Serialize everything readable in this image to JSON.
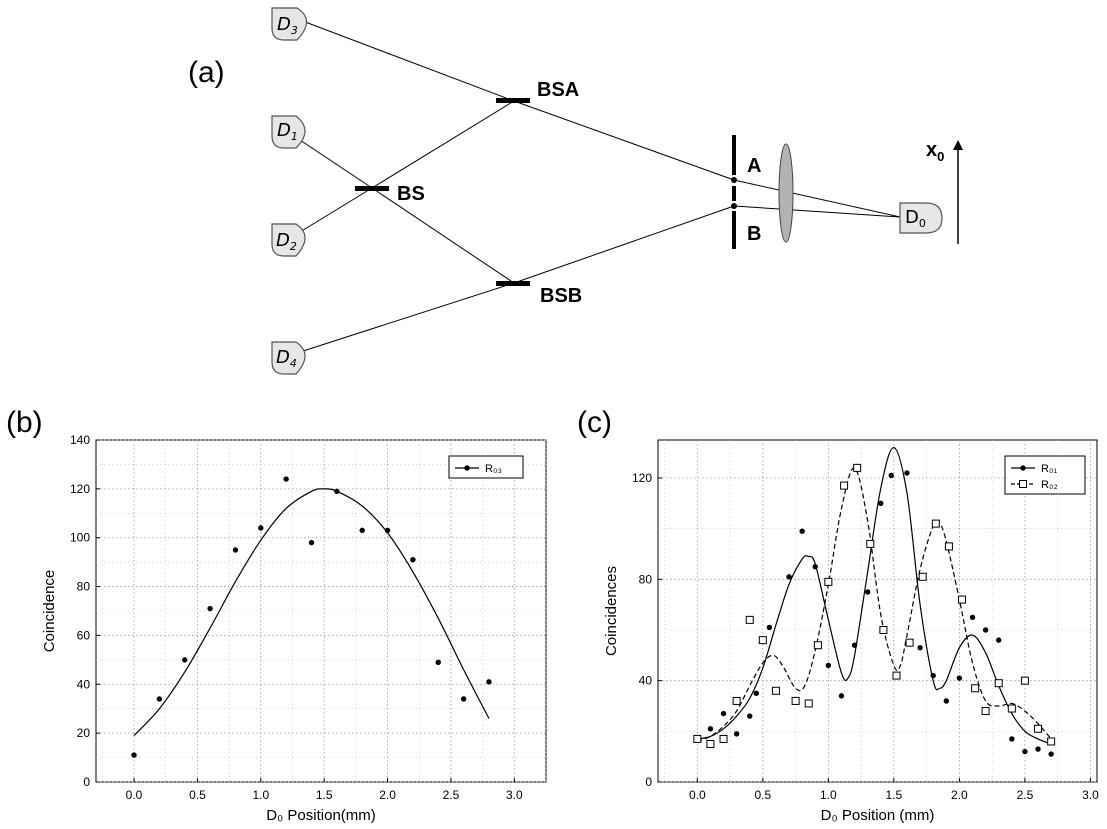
{
  "panels": {
    "a": {
      "label": "(a)",
      "detectors": [
        {
          "main": "D",
          "sub": "3"
        },
        {
          "main": "D",
          "sub": "1"
        },
        {
          "main": "D",
          "sub": "2"
        },
        {
          "main": "D",
          "sub": "4"
        },
        {
          "main": "D",
          "sub": "0"
        }
      ],
      "splitters": {
        "bsa": "BSA",
        "bs": "BS",
        "bsb": "BSB"
      },
      "slits": {
        "a": "A",
        "b": "B"
      },
      "axis_label": {
        "main": "x",
        "sub": "0"
      }
    },
    "b": {
      "label": "(b)"
    },
    "c": {
      "label": "(c)"
    }
  },
  "chart_data": [
    {
      "id": "b",
      "type": "scatter",
      "xlabel": "D₀ Position(mm)",
      "ylabel": "Coincidence",
      "xlim": [
        -0.3,
        3.25
      ],
      "ylim": [
        0,
        140
      ],
      "xticks": [
        "0.0",
        "0.5",
        "1.0",
        "1.5",
        "2.0",
        "2.5",
        "3.0"
      ],
      "yticks": [
        "0",
        "20",
        "40",
        "60",
        "80",
        "100",
        "120",
        "140"
      ],
      "grid": true,
      "legend": "top-right",
      "series": [
        {
          "name": "R₀₃",
          "points": [
            [
              0.0,
              11
            ],
            [
              0.2,
              34
            ],
            [
              0.4,
              50
            ],
            [
              0.6,
              71
            ],
            [
              0.8,
              95
            ],
            [
              1.0,
              104
            ],
            [
              1.2,
              124
            ],
            [
              1.4,
              98
            ],
            [
              1.6,
              119
            ],
            [
              1.8,
              103
            ],
            [
              2.0,
              103
            ],
            [
              2.2,
              91
            ],
            [
              2.4,
              49
            ],
            [
              2.6,
              34
            ],
            [
              2.8,
              41
            ]
          ],
          "fit": [
            [
              0.0,
              19
            ],
            [
              0.2,
              30
            ],
            [
              0.4,
              45
            ],
            [
              0.6,
              63
            ],
            [
              0.8,
              82
            ],
            [
              1.0,
              99
            ],
            [
              1.2,
              112
            ],
            [
              1.4,
              119
            ],
            [
              1.5,
              120
            ],
            [
              1.6,
              119
            ],
            [
              1.8,
              113
            ],
            [
              2.0,
              102
            ],
            [
              2.2,
              86
            ],
            [
              2.4,
              67
            ],
            [
              2.6,
              46
            ],
            [
              2.8,
              26
            ]
          ]
        }
      ]
    },
    {
      "id": "c",
      "type": "scatter",
      "xlabel": "D₀ Position (mm)",
      "ylabel": "Coincidences",
      "xlim": [
        -0.3,
        3.05
      ],
      "ylim": [
        0,
        135
      ],
      "xticks": [
        "0.0",
        "0.5",
        "1.0",
        "1.5",
        "2.0",
        "2.5",
        "3.0"
      ],
      "yticks": [
        "0",
        "40",
        "80",
        "120"
      ],
      "grid": true,
      "legend": "top-right",
      "series": [
        {
          "name": "R₀₁",
          "marker": "filled-circle",
          "line": "solid",
          "points": [
            [
              0.0,
              17
            ],
            [
              0.1,
              21
            ],
            [
              0.2,
              27
            ],
            [
              0.3,
              19
            ],
            [
              0.4,
              26
            ],
            [
              0.45,
              35
            ],
            [
              0.55,
              61
            ],
            [
              0.7,
              81
            ],
            [
              0.8,
              99
            ],
            [
              0.9,
              85
            ],
            [
              1.0,
              46
            ],
            [
              1.1,
              34
            ],
            [
              1.2,
              54
            ],
            [
              1.3,
              75
            ],
            [
              1.4,
              110
            ],
            [
              1.48,
              121
            ],
            [
              1.6,
              122
            ],
            [
              1.7,
              53
            ],
            [
              1.8,
              42
            ],
            [
              1.9,
              32
            ],
            [
              2.0,
              41
            ],
            [
              2.1,
              65
            ],
            [
              2.2,
              60
            ],
            [
              2.3,
              56
            ],
            [
              2.4,
              17
            ],
            [
              2.5,
              12
            ],
            [
              2.6,
              13
            ],
            [
              2.7,
              11
            ]
          ],
          "fit": [
            [
              0.0,
              17
            ],
            [
              0.1,
              18
            ],
            [
              0.2,
              21
            ],
            [
              0.3,
              26
            ],
            [
              0.4,
              33
            ],
            [
              0.5,
              45
            ],
            [
              0.6,
              62
            ],
            [
              0.7,
              78
            ],
            [
              0.8,
              88
            ],
            [
              0.85,
              89
            ],
            [
              0.9,
              86
            ],
            [
              1.0,
              64
            ],
            [
              1.1,
              43
            ],
            [
              1.15,
              41
            ],
            [
              1.2,
              50
            ],
            [
              1.3,
              83
            ],
            [
              1.4,
              116
            ],
            [
              1.5,
              132
            ],
            [
              1.6,
              114
            ],
            [
              1.7,
              70
            ],
            [
              1.8,
              40
            ],
            [
              1.85,
              37
            ],
            [
              1.9,
              40
            ],
            [
              2.0,
              53
            ],
            [
              2.1,
              58
            ],
            [
              2.2,
              51
            ],
            [
              2.3,
              38
            ],
            [
              2.4,
              27
            ],
            [
              2.5,
              20
            ],
            [
              2.6,
              17
            ],
            [
              2.7,
              15
            ]
          ]
        },
        {
          "name": "R₀₂",
          "marker": "open-square",
          "line": "dashed",
          "points": [
            [
              0.0,
              17
            ],
            [
              0.1,
              15
            ],
            [
              0.2,
              17
            ],
            [
              0.3,
              32
            ],
            [
              0.4,
              64
            ],
            [
              0.5,
              56
            ],
            [
              0.6,
              36
            ],
            [
              0.75,
              32
            ],
            [
              0.85,
              31
            ],
            [
              0.92,
              54
            ],
            [
              1.0,
              79
            ],
            [
              1.12,
              117
            ],
            [
              1.22,
              124
            ],
            [
              1.32,
              94
            ],
            [
              1.42,
              60
            ],
            [
              1.52,
              42
            ],
            [
              1.62,
              55
            ],
            [
              1.72,
              81
            ],
            [
              1.82,
              102
            ],
            [
              1.92,
              93
            ],
            [
              2.02,
              72
            ],
            [
              2.12,
              37
            ],
            [
              2.2,
              28
            ],
            [
              2.3,
              39
            ],
            [
              2.4,
              29
            ],
            [
              2.5,
              40
            ],
            [
              2.6,
              21
            ],
            [
              2.7,
              16
            ]
          ],
          "fit": [
            [
              0.0,
              16
            ],
            [
              0.1,
              18
            ],
            [
              0.2,
              22
            ],
            [
              0.3,
              28
            ],
            [
              0.4,
              38
            ],
            [
              0.5,
              47
            ],
            [
              0.58,
              50
            ],
            [
              0.65,
              46
            ],
            [
              0.75,
              37
            ],
            [
              0.82,
              38
            ],
            [
              0.9,
              52
            ],
            [
              1.0,
              78
            ],
            [
              1.1,
              108
            ],
            [
              1.2,
              124
            ],
            [
              1.3,
              103
            ],
            [
              1.4,
              66
            ],
            [
              1.5,
              46
            ],
            [
              1.55,
              46
            ],
            [
              1.6,
              58
            ],
            [
              1.7,
              84
            ],
            [
              1.8,
              101
            ],
            [
              1.85,
              102
            ],
            [
              1.9,
              95
            ],
            [
              2.0,
              72
            ],
            [
              2.1,
              47
            ],
            [
              2.2,
              32
            ],
            [
              2.3,
              30
            ],
            [
              2.4,
              31
            ],
            [
              2.5,
              28
            ],
            [
              2.6,
              23
            ],
            [
              2.7,
              17
            ]
          ]
        }
      ]
    }
  ]
}
